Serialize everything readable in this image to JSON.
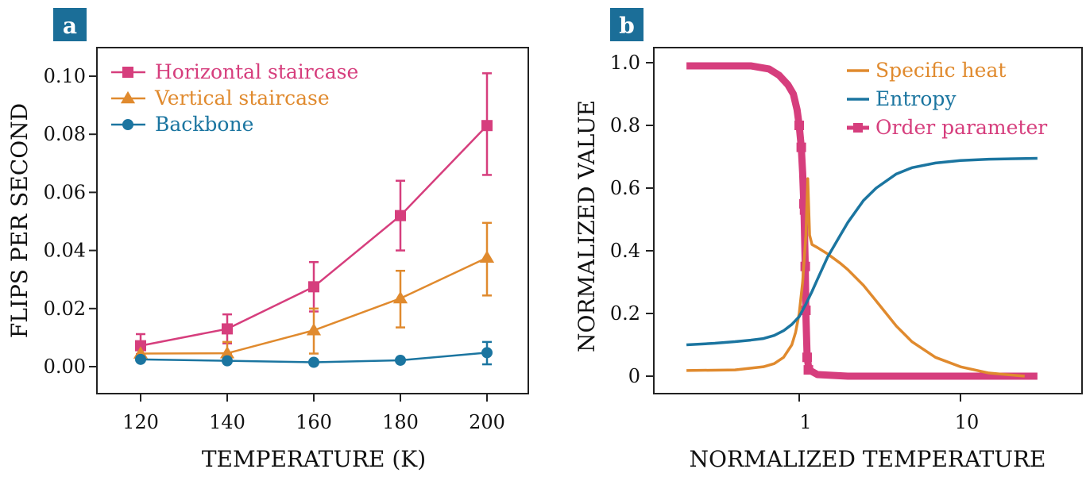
{
  "colors": {
    "pink": "#d63e7d",
    "orange": "#e08a2e",
    "blue": "#1b75a0",
    "label_bg": "#1b6e98"
  },
  "chart_data": [
    {
      "panel_label": "a",
      "type": "line",
      "xlabel": "TEMPERATURE (K)",
      "ylabel": "FLIPS PER SECOND",
      "xlim": [
        118,
        212
      ],
      "ylim": [
        -0.009,
        0.11
      ],
      "xticks": [
        120,
        140,
        160,
        180,
        200
      ],
      "xtick_labels": [
        "120",
        "140",
        "160",
        "180",
        "200"
      ],
      "yticks": [
        0,
        0.02,
        0.04,
        0.06,
        0.08,
        0.1
      ],
      "ytick_labels": [
        "0.00",
        "0.02",
        "0.04",
        "0.06",
        "0.08",
        "0.10"
      ],
      "legend_position": "top-left",
      "x": [
        120,
        140,
        160,
        180,
        200
      ],
      "series": [
        {
          "name": "Horizontal staircase",
          "marker": "square",
          "color": "#d63e7d",
          "values": [
            0.0072,
            0.013,
            0.0275,
            0.052,
            0.083
          ],
          "err_low": [
            0.0043,
            0.008,
            0.019,
            0.04,
            0.066
          ],
          "err_high": [
            0.0112,
            0.018,
            0.036,
            0.064,
            0.101
          ]
        },
        {
          "name": "Vertical staircase",
          "marker": "triangle",
          "color": "#e08a2e",
          "values": [
            0.0045,
            0.0046,
            0.0125,
            0.0235,
            0.0375
          ],
          "err_low": [
            0.0045,
            0.0046,
            0.0045,
            0.0135,
            0.0245
          ],
          "err_high": [
            0.0045,
            0.0085,
            0.02,
            0.033,
            0.0495
          ]
        },
        {
          "name": "Backbone",
          "marker": "circle",
          "color": "#1b75a0",
          "values": [
            0.0025,
            0.002,
            0.0015,
            0.0022,
            0.0048
          ],
          "err_low": [
            0.0025,
            0.002,
            0.0015,
            0.0022,
            0.0008
          ],
          "err_high": [
            0.0025,
            0.002,
            0.0015,
            0.0022,
            0.0085
          ]
        }
      ]
    },
    {
      "panel_label": "b",
      "type": "line",
      "xscale": "log",
      "xlabel": "NORMALIZED TEMPERATURE",
      "ylabel": "NORMALIZED VALUE",
      "xlim": [
        0.12,
        60
      ],
      "ylim": [
        -0.055,
        1.05
      ],
      "xticks": [
        1,
        10
      ],
      "xtick_labels": [
        "1",
        "10"
      ],
      "yticks": [
        0,
        0.2,
        0.4,
        0.6,
        0.8,
        1.0
      ],
      "ytick_labels": [
        "0",
        "0.2",
        "0.4",
        "0.6",
        "0.8",
        "1.0"
      ],
      "legend_position": "top-right",
      "series": [
        {
          "name": "Specific heat",
          "color": "#e08a2e",
          "x": [
            0.2,
            0.4,
            0.6,
            0.7,
            0.8,
            0.9,
            0.95,
            1.0,
            1.05,
            1.1,
            1.13,
            1.16,
            1.2,
            1.3,
            1.5,
            1.8,
            2,
            2.5,
            3,
            4,
            5,
            7,
            10,
            15,
            25
          ],
          "y": [
            0.018,
            0.02,
            0.03,
            0.04,
            0.06,
            0.1,
            0.14,
            0.2,
            0.3,
            0.45,
            0.63,
            0.45,
            0.42,
            0.41,
            0.39,
            0.36,
            0.34,
            0.29,
            0.24,
            0.16,
            0.11,
            0.06,
            0.03,
            0.01,
            0.0
          ]
        },
        {
          "name": "Entropy",
          "color": "#1b75a0",
          "x": [
            0.2,
            0.3,
            0.4,
            0.5,
            0.6,
            0.7,
            0.8,
            0.9,
            1.0,
            1.1,
            1.2,
            1.3,
            1.5,
            1.8,
            2,
            2.5,
            3,
            4,
            5,
            7,
            10,
            15,
            30
          ],
          "y": [
            0.1,
            0.105,
            0.11,
            0.115,
            0.12,
            0.13,
            0.145,
            0.165,
            0.19,
            0.23,
            0.27,
            0.31,
            0.38,
            0.45,
            0.49,
            0.56,
            0.6,
            0.645,
            0.665,
            0.68,
            0.688,
            0.692,
            0.695
          ]
        },
        {
          "name": "Order parameter",
          "color": "#d63e7d",
          "marker": "square",
          "x": [
            0.2,
            0.5,
            0.65,
            0.75,
            0.85,
            0.92,
            0.97,
            1.0,
            1.03,
            1.05,
            1.07,
            1.09,
            1.1,
            1.12,
            1.15,
            1.3,
            2,
            5,
            10,
            30
          ],
          "y": [
            0.99,
            0.99,
            0.98,
            0.96,
            0.93,
            0.9,
            0.85,
            0.8,
            0.73,
            0.65,
            0.54,
            0.35,
            0.2,
            0.06,
            0.02,
            0.005,
            0.0,
            0.0,
            0.0,
            0.0
          ],
          "marker_x": [
            1.0,
            1.03,
            1.07,
            1.08,
            1.09,
            1.1,
            1.12,
            1.14
          ],
          "marker_y": [
            0.8,
            0.73,
            0.55,
            0.53,
            0.35,
            0.21,
            0.06,
            0.02
          ]
        }
      ]
    }
  ]
}
